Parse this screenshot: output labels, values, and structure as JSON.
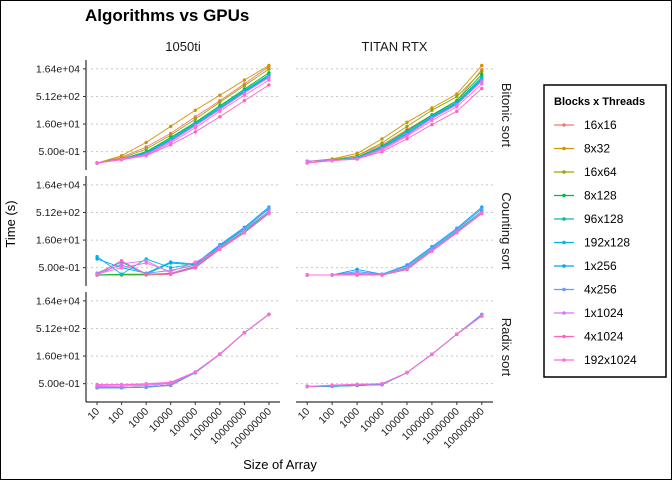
{
  "figure": {
    "title": "Algorithms vs GPUs",
    "xlabel": "Size of Array",
    "ylabel": "Time (s)",
    "legend_title": "Blocks x Threads"
  },
  "chart_data": {
    "type": "line",
    "title": "Algorithms vs GPUs",
    "xlabel": "Size of Array",
    "ylabel": "Time (s)",
    "x_scale": "log10",
    "y_scale": "log",
    "x": [
      10,
      100,
      1000,
      10000,
      100000,
      1000000,
      10000000,
      100000000
    ],
    "x_tick_labels": [
      "10",
      "100",
      "1000",
      "10000",
      "100000",
      "1000000",
      "10000000",
      "100000000"
    ],
    "y_ticks": [
      0.5,
      16,
      512,
      16384
    ],
    "y_tick_labels": [
      "5.00e-01",
      "1.60e+01",
      "5.12e+02",
      "1.64e+04"
    ],
    "ylim": [
      0.05,
      50000
    ],
    "grid": true,
    "legend_position": "right",
    "facet_columns": [
      "1050ti",
      "TITAN RTX"
    ],
    "facet_rows": [
      "Bitonic sort",
      "Counting sort",
      "Radix sort"
    ],
    "legend": [
      {
        "name": "16x16",
        "color": "#F8766D"
      },
      {
        "name": "8x32",
        "color": "#D39200"
      },
      {
        "name": "16x64",
        "color": "#93AA00"
      },
      {
        "name": "8x128",
        "color": "#00BA38"
      },
      {
        "name": "96x128",
        "color": "#00C19F"
      },
      {
        "name": "192x128",
        "color": "#00B9E3"
      },
      {
        "name": "1x256",
        "color": "#00A5FF"
      },
      {
        "name": "4x256",
        "color": "#619CFF"
      },
      {
        "name": "1x1024",
        "color": "#DB72FB"
      },
      {
        "name": "4x1024",
        "color": "#FF61C3"
      },
      {
        "name": "192x1024",
        "color": "#FF6CE0"
      }
    ],
    "panels": [
      {
        "col": "1050ti",
        "row": "Bitonic sort",
        "series": [
          {
            "name": "16x16",
            "values": [
              0.12,
              0.25,
              0.9,
              5,
              40,
              300,
              2500,
              22000
            ]
          },
          {
            "name": "8x32",
            "values": [
              0.12,
              0.3,
              1.6,
              12,
              90,
              600,
              4000,
              25000
            ]
          },
          {
            "name": "16x64",
            "values": [
              0.12,
              0.22,
              0.7,
              4,
              30,
              250,
              2000,
              16000
            ]
          },
          {
            "name": "8x128",
            "values": [
              0.12,
              0.2,
              0.5,
              3,
              20,
              160,
              1300,
              10000
            ]
          },
          {
            "name": "96x128",
            "values": [
              0.12,
              0.2,
              0.45,
              2.6,
              18,
              140,
              1100,
              8000
            ]
          },
          {
            "name": "192x128",
            "values": [
              0.12,
              0.2,
              0.42,
              2.3,
              16,
              120,
              1000,
              7000
            ]
          },
          {
            "name": "1x256",
            "values": [
              0.12,
              0.2,
              0.4,
              2.1,
              15,
              110,
              900,
              6500
            ]
          },
          {
            "name": "4x256",
            "values": [
              0.12,
              0.2,
              0.38,
              2.0,
              14,
              105,
              850,
              6000
            ]
          },
          {
            "name": "1x1024",
            "values": [
              0.12,
              0.2,
              0.35,
              1.8,
              13,
              100,
              800,
              5500
            ]
          },
          {
            "name": "4x1024",
            "values": [
              0.12,
              0.18,
              0.3,
              1.2,
              6,
              40,
              300,
              2200
            ]
          },
          {
            "name": "192x1024",
            "values": [
              0.12,
              0.19,
              0.32,
              1.5,
              10,
              80,
              600,
              4000
            ]
          }
        ]
      },
      {
        "col": "TITAN RTX",
        "row": "Bitonic sort",
        "series": [
          {
            "name": "16x16",
            "values": [
              0.15,
              0.18,
              0.3,
              1.2,
              8,
              50,
              300,
              15000
            ]
          },
          {
            "name": "8x32",
            "values": [
              0.15,
              0.2,
              0.4,
              2.5,
              20,
              120,
              700,
              25000
            ]
          },
          {
            "name": "16x64",
            "values": [
              0.15,
              0.18,
              0.3,
              1.5,
              12,
              90,
              500,
              12000
            ]
          },
          {
            "name": "8x128",
            "values": [
              0.15,
              0.17,
              0.25,
              1.0,
              7,
              50,
              300,
              8000
            ]
          },
          {
            "name": "96x128",
            "values": [
              0.15,
              0.17,
              0.24,
              0.9,
              6,
              45,
              250,
              6000
            ]
          },
          {
            "name": "192x128",
            "values": [
              0.15,
              0.17,
              0.23,
              0.8,
              5,
              40,
              220,
              5000
            ]
          },
          {
            "name": "1x256",
            "values": [
              0.15,
              0.17,
              0.22,
              0.8,
              5,
              38,
              200,
              4500
            ]
          },
          {
            "name": "4x256",
            "values": [
              0.15,
              0.17,
              0.22,
              0.75,
              4.5,
              35,
              190,
              4000
            ]
          },
          {
            "name": "1x1024",
            "values": [
              0.15,
              0.17,
              0.21,
              0.7,
              4,
              32,
              180,
              3500
            ]
          },
          {
            "name": "4x1024",
            "values": [
              0.12,
              0.16,
              0.2,
              0.5,
              2.5,
              15,
              80,
              1400
            ]
          },
          {
            "name": "192x1024",
            "values": [
              0.12,
              0.16,
              0.2,
              0.6,
              3.5,
              25,
              140,
              2500
            ]
          }
        ]
      },
      {
        "col": "1050ti",
        "row": "Counting sort",
        "series": [
          {
            "name": "16x16",
            "values": [
              0.2,
              0.2,
              0.2,
              0.22,
              0.5,
              5,
              40,
              450
            ]
          },
          {
            "name": "8x32",
            "values": [
              0.2,
              0.2,
              0.21,
              0.22,
              0.5,
              5,
              40,
              450
            ]
          },
          {
            "name": "16x64",
            "values": [
              0.2,
              0.21,
              0.21,
              0.23,
              0.55,
              5.5,
              42,
              470
            ]
          },
          {
            "name": "8x128",
            "values": [
              0.2,
              0.22,
              0.22,
              0.24,
              0.6,
              6,
              45,
              500
            ]
          },
          {
            "name": "96x128",
            "values": [
              0.25,
              1.0,
              0.22,
              0.9,
              0.7,
              7,
              60,
              600
            ]
          },
          {
            "name": "192x128",
            "values": [
              2.0,
              0.22,
              1.5,
              0.5,
              0.8,
              8,
              70,
              800
            ]
          },
          {
            "name": "1x256",
            "values": [
              1.5,
              0.5,
              0.25,
              1.0,
              0.8,
              9,
              80,
              1000
            ]
          },
          {
            "name": "4x256",
            "values": [
              0.25,
              0.7,
              0.25,
              0.35,
              0.7,
              8,
              70,
              900
            ]
          },
          {
            "name": "1x1024",
            "values": [
              0.2,
              0.8,
              1.2,
              0.25,
              0.6,
              6,
              50,
              600
            ]
          },
          {
            "name": "4x1024",
            "values": [
              0.22,
              1.2,
              0.22,
              0.22,
              0.5,
              5,
              40,
              450
            ]
          },
          {
            "name": "192x1024",
            "values": [
              0.22,
              0.5,
              0.9,
              0.3,
              1.0,
              5,
              40,
              450
            ]
          }
        ]
      },
      {
        "col": "TITAN RTX",
        "row": "Counting sort",
        "series": [
          {
            "name": "16x16",
            "values": [
              0.2,
              0.2,
              0.2,
              0.2,
              0.4,
              4,
              40,
              450
            ]
          },
          {
            "name": "8x32",
            "values": [
              0.2,
              0.2,
              0.2,
              0.2,
              0.4,
              4,
              40,
              450
            ]
          },
          {
            "name": "16x64",
            "values": [
              0.2,
              0.2,
              0.2,
              0.2,
              0.4,
              4,
              40,
              450
            ]
          },
          {
            "name": "8x128",
            "values": [
              0.2,
              0.2,
              0.22,
              0.2,
              0.45,
              4.5,
              45,
              500
            ]
          },
          {
            "name": "96x128",
            "values": [
              0.2,
              0.2,
              0.25,
              0.2,
              0.5,
              5,
              50,
              600
            ]
          },
          {
            "name": "192x128",
            "values": [
              0.2,
              0.2,
              0.3,
              0.22,
              0.6,
              6,
              60,
              800
            ]
          },
          {
            "name": "1x256",
            "values": [
              0.2,
              0.2,
              0.4,
              0.22,
              0.7,
              7,
              70,
              1000
            ]
          },
          {
            "name": "4x256",
            "values": [
              0.2,
              0.2,
              0.3,
              0.22,
              0.6,
              6,
              60,
              800
            ]
          },
          {
            "name": "1x1024",
            "values": [
              0.2,
              0.2,
              0.22,
              0.2,
              0.45,
              4.5,
              45,
              500
            ]
          },
          {
            "name": "4x1024",
            "values": [
              0.2,
              0.2,
              0.2,
              0.2,
              0.4,
              4,
              40,
              450
            ]
          },
          {
            "name": "192x1024",
            "values": [
              0.2,
              0.2,
              0.25,
              0.2,
              0.45,
              4,
              40,
              450
            ]
          }
        ]
      },
      {
        "col": "1050ti",
        "row": "Radix sort",
        "series": [
          {
            "name": "16x16",
            "values": [
              0.3,
              0.3,
              0.32,
              0.4,
              2,
              20,
              300,
              3000
            ]
          },
          {
            "name": "8x32",
            "values": [
              0.3,
              0.3,
              0.32,
              0.4,
              2,
              20,
              300,
              3000
            ]
          },
          {
            "name": "16x64",
            "values": [
              0.3,
              0.3,
              0.33,
              0.42,
              2,
              20,
              300,
              3000
            ]
          },
          {
            "name": "8x128",
            "values": [
              0.3,
              0.3,
              0.33,
              0.42,
              2,
              20,
              300,
              3000
            ]
          },
          {
            "name": "96x128",
            "values": [
              0.3,
              0.3,
              0.33,
              0.42,
              2,
              20,
              300,
              3000
            ]
          },
          {
            "name": "192x128",
            "values": [
              0.3,
              0.3,
              0.33,
              0.42,
              2,
              20,
              300,
              3000
            ]
          },
          {
            "name": "1x256",
            "values": [
              0.3,
              0.3,
              0.33,
              0.42,
              2,
              20,
              300,
              3000
            ]
          },
          {
            "name": "4x256",
            "values": [
              0.3,
              0.3,
              0.33,
              0.42,
              2,
              20,
              300,
              3000
            ]
          },
          {
            "name": "1x1024",
            "values": [
              0.35,
              0.36,
              0.4,
              0.5,
              2.1,
              20,
              300,
              3000
            ]
          },
          {
            "name": "4x1024",
            "values": [
              0.4,
              0.42,
              0.46,
              0.55,
              2.2,
              21,
              300,
              3000
            ]
          },
          {
            "name": "192x1024",
            "values": [
              0.45,
              0.45,
              0.5,
              0.6,
              2.2,
              21,
              300,
              3000
            ]
          }
        ]
      },
      {
        "col": "TITAN RTX",
        "row": "Radix sort",
        "series": [
          {
            "name": "16x16",
            "values": [
              0.35,
              0.36,
              0.4,
              0.45,
              2,
              20,
              250,
              2500
            ]
          },
          {
            "name": "8x32",
            "values": [
              0.35,
              0.36,
              0.4,
              0.45,
              2,
              20,
              250,
              2500
            ]
          },
          {
            "name": "16x64",
            "values": [
              0.35,
              0.36,
              0.4,
              0.45,
              2,
              20,
              250,
              2500
            ]
          },
          {
            "name": "8x128",
            "values": [
              0.35,
              0.36,
              0.4,
              0.45,
              2,
              20,
              250,
              2500
            ]
          },
          {
            "name": "96x128",
            "values": [
              0.35,
              0.36,
              0.4,
              0.45,
              2,
              20,
              250,
              2500
            ]
          },
          {
            "name": "192x128",
            "values": [
              0.35,
              0.36,
              0.4,
              0.45,
              2,
              20,
              250,
              2500
            ]
          },
          {
            "name": "1x256",
            "values": [
              0.35,
              0.38,
              0.42,
              0.47,
              2,
              20,
              250,
              3000
            ]
          },
          {
            "name": "4x256",
            "values": [
              0.35,
              0.38,
              0.42,
              0.47,
              2,
              20,
              250,
              3000
            ]
          },
          {
            "name": "1x1024",
            "values": [
              0.35,
              0.4,
              0.45,
              0.5,
              2,
              20,
              250,
              2500
            ]
          },
          {
            "name": "4x1024",
            "values": [
              0.35,
              0.4,
              0.45,
              0.5,
              2,
              20,
              250,
              2500
            ]
          },
          {
            "name": "192x1024",
            "values": [
              0.35,
              0.42,
              0.47,
              0.5,
              2,
              20,
              250,
              2500
            ]
          }
        ]
      }
    ]
  }
}
